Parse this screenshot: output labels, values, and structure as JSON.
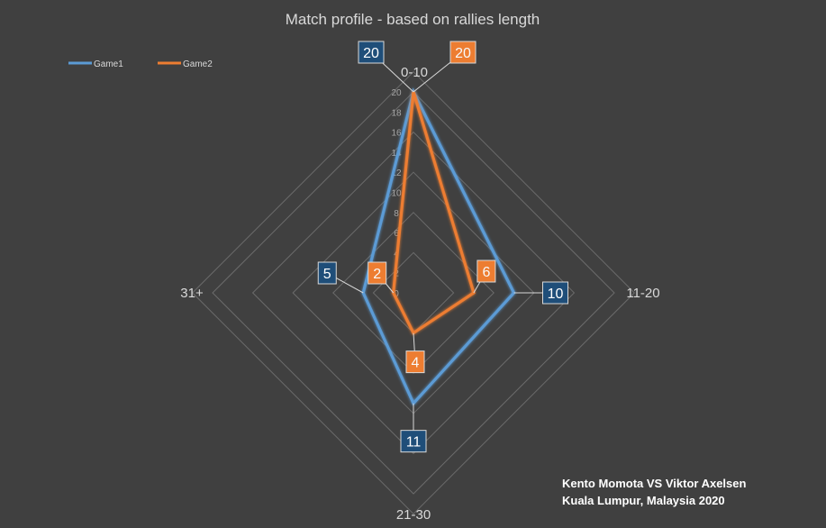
{
  "chart_data": {
    "type": "radar",
    "title": "Match profile - based on rallies length",
    "categories": [
      "0-10",
      "11-20",
      "21-30",
      "31+"
    ],
    "rmax": 20,
    "ticks": [
      0,
      2,
      4,
      6,
      8,
      10,
      12,
      14,
      16,
      18,
      20
    ],
    "series": [
      {
        "name": "Game1",
        "values": [
          20,
          10,
          11,
          5
        ],
        "color": "#5b9bd5",
        "label_fill": "#1f4e79"
      },
      {
        "name": "Game2",
        "values": [
          20,
          6,
          4,
          2
        ],
        "color": "#ed7d31",
        "label_fill": "#ed7d31"
      }
    ],
    "legend_position": "top-left",
    "grid": true
  },
  "caption": {
    "line1": "Kento Momota VS Viktor Axelsen",
    "line2": "Kuala Lumpur, Malaysia 2020"
  }
}
